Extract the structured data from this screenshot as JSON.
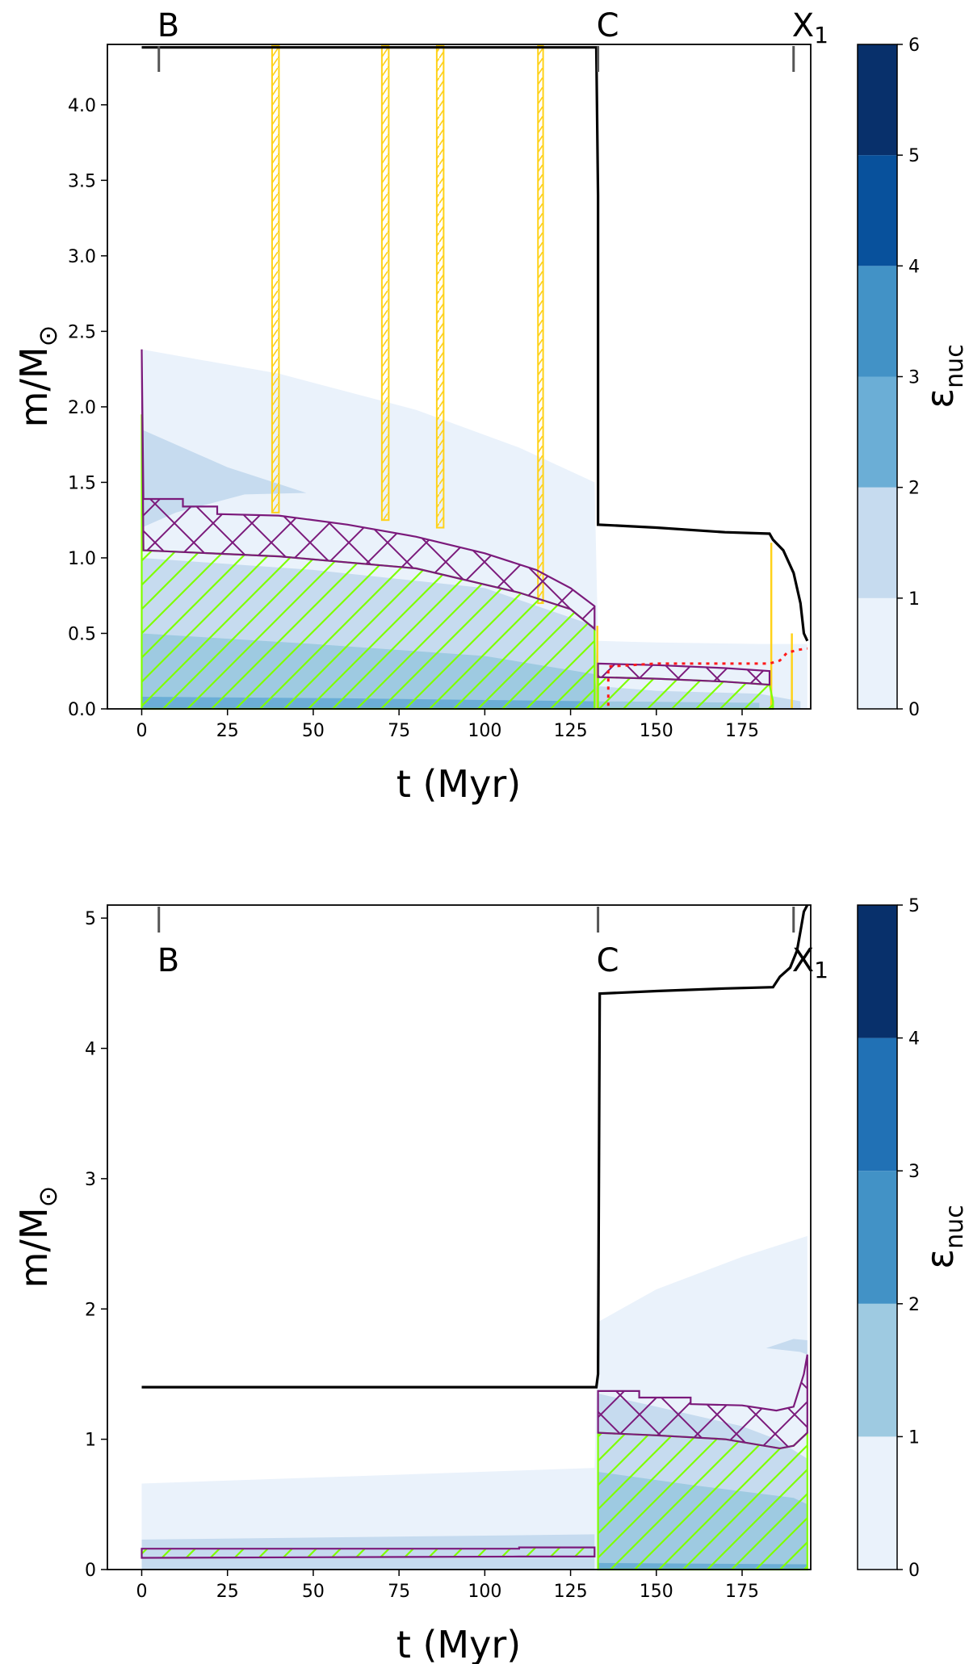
{
  "chart_data": [
    {
      "type": "area",
      "title": "",
      "xlabel": "t (Myr)",
      "ylabel_base": "m/M",
      "ylabel_sub": "⊙",
      "xlim": [
        -10,
        195
      ],
      "ylim": [
        0,
        4.4
      ],
      "xticks": [
        0,
        25,
        50,
        75,
        100,
        125,
        150,
        175
      ],
      "yticks": [
        0.0,
        0.5,
        1.0,
        1.5,
        2.0,
        2.5,
        3.0,
        3.5,
        4.0
      ],
      "ytick_labels": [
        "0.0",
        "0.5",
        "1.0",
        "1.5",
        "2.0",
        "2.5",
        "3.0",
        "3.5",
        "4.0"
      ],
      "colorbar": {
        "label_base": "ε",
        "label_sub": "nuc",
        "levels": [
          0,
          1,
          2,
          3,
          4,
          5,
          6
        ],
        "tick_labels": [
          "0",
          "1",
          "2",
          "3",
          "4",
          "5",
          "6"
        ]
      },
      "phase_markers": [
        {
          "label": "B",
          "t": 5
        },
        {
          "label": "C",
          "t": 133
        },
        {
          "label": "X",
          "sub": "1",
          "t": 190
        }
      ],
      "total_mass": [
        [
          0,
          4.38
        ],
        [
          132.5,
          4.38
        ],
        [
          132.5,
          4.36
        ],
        [
          133,
          3.4
        ],
        [
          133,
          1.22
        ],
        [
          150,
          1.2
        ],
        [
          170,
          1.17
        ],
        [
          183,
          1.16
        ],
        [
          184,
          1.12
        ],
        [
          187,
          1.05
        ],
        [
          190,
          0.9
        ],
        [
          192,
          0.7
        ],
        [
          193,
          0.5
        ],
        [
          194,
          0.45
        ]
      ],
      "burning_regions": [
        {
          "level": 1,
          "outline": [
            [
              0,
              2.38
            ],
            [
              40,
              2.22
            ],
            [
              80,
              1.98
            ],
            [
              110,
              1.73
            ],
            [
              132,
              1.5
            ],
            [
              133,
              0.45
            ],
            [
              150,
              0.44
            ],
            [
              180,
              0.43
            ],
            [
              194,
              0.43
            ],
            [
              194,
              0
            ],
            [
              0,
              0
            ]
          ]
        },
        {
          "level": 2,
          "outline": [
            [
              0,
              1.85
            ],
            [
              25,
              1.6
            ],
            [
              48,
              1.43
            ],
            [
              30,
              1.42
            ],
            [
              10,
              1.3
            ],
            [
              0,
              1.2
            ]
          ]
        },
        {
          "level": 2,
          "outline": [
            [
              0,
              1.0
            ],
            [
              50,
              0.92
            ],
            [
              100,
              0.8
            ],
            [
              132,
              0.55
            ],
            [
              133,
              0.15
            ],
            [
              150,
              0.12
            ],
            [
              180,
              0.1
            ],
            [
              192,
              0.05
            ],
            [
              192,
              0
            ],
            [
              0,
              0
            ]
          ]
        },
        {
          "level": 3,
          "outline": [
            [
              0,
              0.5
            ],
            [
              50,
              0.43
            ],
            [
              100,
              0.35
            ],
            [
              132,
              0.23
            ],
            [
              133,
              0.05
            ],
            [
              180,
              0.04
            ],
            [
              180,
              0
            ],
            [
              0,
              0
            ]
          ]
        },
        {
          "level": 4,
          "outline": [
            [
              0,
              0.08
            ],
            [
              60,
              0.07
            ],
            [
              132,
              0.05
            ],
            [
              132,
              0
            ],
            [
              0,
              0
            ]
          ]
        }
      ],
      "convective_core": [
        [
          0,
          1.95
        ],
        [
          0.5,
          1.05
        ],
        [
          40,
          1.01
        ],
        [
          80,
          0.93
        ],
        [
          110,
          0.77
        ],
        [
          125,
          0.66
        ],
        [
          132,
          0.53
        ],
        [
          132,
          0
        ],
        [
          0,
          0
        ]
      ],
      "convective_core_he": [
        [
          133,
          0.21
        ],
        [
          150,
          0.2
        ],
        [
          170,
          0.18
        ],
        [
          183,
          0.16
        ],
        [
          184,
          0.05
        ],
        [
          184,
          0
        ],
        [
          133,
          0
        ]
      ],
      "overshoot_region": [
        [
          0,
          2.38
        ],
        [
          0.5,
          1.39
        ],
        [
          12,
          1.39
        ],
        [
          12,
          1.34
        ],
        [
          22,
          1.34
        ],
        [
          22,
          1.29
        ],
        [
          40,
          1.28
        ],
        [
          60,
          1.22
        ],
        [
          80,
          1.14
        ],
        [
          100,
          1.03
        ],
        [
          115,
          0.92
        ],
        [
          125,
          0.8
        ],
        [
          132,
          0.68
        ],
        [
          132,
          0.53
        ],
        [
          125,
          0.66
        ],
        [
          110,
          0.77
        ],
        [
          80,
          0.93
        ],
        [
          40,
          1.01
        ],
        [
          0.5,
          1.05
        ]
      ],
      "overshoot_region_he": [
        [
          133,
          0.3
        ],
        [
          150,
          0.29
        ],
        [
          170,
          0.27
        ],
        [
          183,
          0.25
        ],
        [
          183,
          0.16
        ],
        [
          170,
          0.18
        ],
        [
          150,
          0.2
        ],
        [
          133,
          0.21
        ]
      ],
      "thermohaline_strips": [
        [
          38,
          40
        ],
        [
          70,
          72
        ],
        [
          86,
          88
        ],
        [
          115.5,
          117
        ]
      ],
      "he_core_dotted": [
        [
          136,
          0.02
        ],
        [
          136,
          0.28
        ],
        [
          150,
          0.3
        ],
        [
          183,
          0.3
        ],
        [
          186,
          0.32
        ],
        [
          188,
          0.37
        ],
        [
          191,
          0.39
        ],
        [
          194,
          0.4
        ]
      ]
    },
    {
      "type": "area",
      "title": "",
      "xlabel": "t (Myr)",
      "ylabel_base": "m/M",
      "ylabel_sub": "⊙",
      "xlim": [
        -10,
        195
      ],
      "ylim": [
        0,
        5.1
      ],
      "xticks": [
        0,
        25,
        50,
        75,
        100,
        125,
        150,
        175
      ],
      "yticks": [
        0,
        1,
        2,
        3,
        4,
        5
      ],
      "ytick_labels": [
        "0",
        "1",
        "2",
        "3",
        "4",
        "5"
      ],
      "colorbar": {
        "label_base": "ε",
        "label_sub": "nuc",
        "levels": [
          0,
          1,
          2,
          3,
          4,
          5
        ],
        "tick_labels": [
          "0",
          "1",
          "2",
          "3",
          "4",
          "5"
        ]
      },
      "phase_markers": [
        {
          "label": "B",
          "t": 5
        },
        {
          "label": "C",
          "t": 133
        },
        {
          "label": "X",
          "sub": "1",
          "t": 190
        }
      ],
      "total_mass": [
        [
          0,
          1.4
        ],
        [
          132.5,
          1.4
        ],
        [
          133,
          1.5
        ],
        [
          133.5,
          4.42
        ],
        [
          150,
          4.44
        ],
        [
          170,
          4.46
        ],
        [
          184,
          4.47
        ],
        [
          186,
          4.55
        ],
        [
          189,
          4.62
        ],
        [
          191,
          4.75
        ],
        [
          192,
          4.9
        ],
        [
          193,
          5.05
        ],
        [
          194,
          5.1
        ]
      ],
      "burning_regions": [
        {
          "level": 1,
          "outline": [
            [
              0,
              0.66
            ],
            [
              132,
              0.78
            ],
            [
              133,
              1.9
            ],
            [
              150,
              2.15
            ],
            [
              175,
              2.4
            ],
            [
              194,
              2.56
            ],
            [
              194,
              0
            ],
            [
              0,
              0
            ]
          ]
        },
        {
          "level": 2,
          "outline": [
            [
              0,
              0.23
            ],
            [
              132,
              0.27
            ],
            [
              132,
              0
            ],
            [
              0,
              0
            ]
          ]
        },
        {
          "level": 2,
          "outline": [
            [
              133,
              1.35
            ],
            [
              150,
              1.25
            ],
            [
              175,
              1.1
            ],
            [
              185,
              1.0
            ],
            [
              194,
              0.85
            ],
            [
              194,
              0
            ],
            [
              133,
              0
            ]
          ]
        },
        {
          "level": 2,
          "outline": [
            [
              182,
              1.7
            ],
            [
              192,
              1.67
            ],
            [
              194,
              1.65
            ],
            [
              194,
              1.76
            ],
            [
              190,
              1.77
            ]
          ]
        },
        {
          "level": 3,
          "outline": [
            [
              133,
              0.75
            ],
            [
              160,
              0.65
            ],
            [
              190,
              0.55
            ],
            [
              194,
              0.5
            ],
            [
              194,
              0
            ],
            [
              133,
              0
            ]
          ]
        },
        {
          "level": 4,
          "outline": [
            [
              133,
              0.05
            ],
            [
              194,
              0.04
            ],
            [
              194,
              0
            ],
            [
              133,
              0
            ]
          ]
        }
      ],
      "convective_core": [
        [
          133,
          1.05
        ],
        [
          150,
          1.03
        ],
        [
          170,
          1.0
        ],
        [
          186,
          0.93
        ],
        [
          190,
          0.95
        ],
        [
          192,
          1.0
        ],
        [
          194,
          1.05
        ],
        [
          194,
          0
        ],
        [
          133,
          0
        ]
      ],
      "overshoot_region": [
        [
          133,
          1.37
        ],
        [
          145,
          1.37
        ],
        [
          145,
          1.32
        ],
        [
          160,
          1.32
        ],
        [
          160,
          1.27
        ],
        [
          175,
          1.26
        ],
        [
          185,
          1.22
        ],
        [
          190,
          1.25
        ],
        [
          193,
          1.5
        ],
        [
          194,
          1.65
        ],
        [
          194,
          1.05
        ],
        [
          192,
          1.0
        ],
        [
          190,
          0.95
        ],
        [
          186,
          0.93
        ],
        [
          170,
          1.0
        ],
        [
          150,
          1.03
        ],
        [
          133,
          1.05
        ]
      ],
      "low_conv_zone": [
        [
          0,
          0.16
        ],
        [
          110,
          0.16
        ],
        [
          110,
          0.17
        ],
        [
          132,
          0.17
        ],
        [
          132,
          0.1
        ],
        [
          110,
          0.1
        ],
        [
          0,
          0.09
        ]
      ]
    }
  ]
}
